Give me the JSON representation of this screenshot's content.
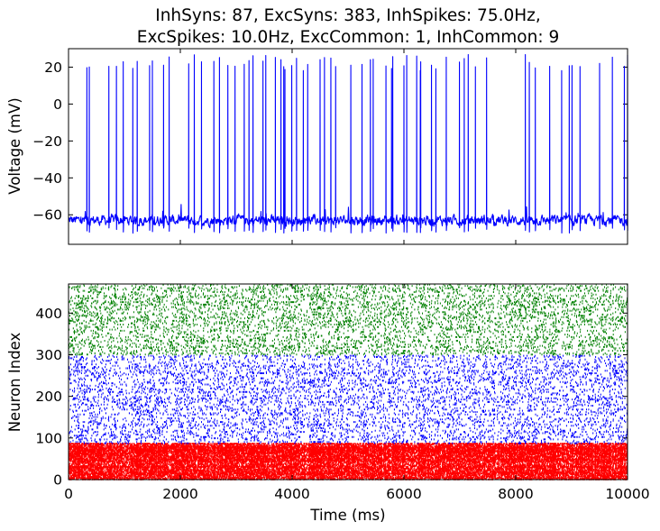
{
  "chart_data": [
    {
      "type": "line",
      "title_lines": [
        "InhSyns: 87, ExcSyns: 383, InhSpikes: 75.0Hz,",
        "ExcSpikes: 10.0Hz, ExcCommon: 1, InhCommon: 9"
      ],
      "xlabel": "",
      "ylabel": "Voltage (mV)",
      "xlim": [
        0,
        10000
      ],
      "ylim": [
        -76,
        30
      ],
      "yticks": [
        20,
        0,
        -20,
        -40,
        -60
      ],
      "ytick_labels": [
        "20",
        "0",
        "−20",
        "−40",
        "−60"
      ],
      "xticks": [
        0,
        2000,
        4000,
        6000,
        8000,
        10000
      ],
      "grid": false,
      "series": [
        {
          "color": "#0000ff",
          "baseline_mv": -63,
          "spike_peak_mv_range": [
            18,
            27
          ],
          "spike_times_ms": [
            330,
            370,
            720,
            860,
            980,
            1150,
            1230,
            1450,
            1500,
            1700,
            1800,
            2150,
            2250,
            2380,
            2600,
            2700,
            2850,
            2980,
            3140,
            3230,
            3300,
            3480,
            3530,
            3700,
            3800,
            3850,
            3870,
            3990,
            4080,
            4200,
            4280,
            4500,
            4580,
            4690,
            4780,
            5050,
            5250,
            5400,
            5450,
            5680,
            5780,
            5800,
            6000,
            6050,
            6230,
            6290,
            6300,
            6490,
            6570,
            6760,
            6990,
            7080,
            7150,
            7280,
            7480,
            8170,
            8240,
            8350,
            8610,
            8820,
            8960,
            9010,
            9150,
            9500,
            9730,
            9940,
            10000
          ]
        }
      ]
    },
    {
      "type": "scatter",
      "subtype": "raster",
      "xlabel": "Time (ms)",
      "ylabel": "Neuron Index",
      "xlim": [
        0,
        10000
      ],
      "ylim": [
        0,
        470
      ],
      "xticks": [
        0,
        2000,
        4000,
        6000,
        8000,
        10000
      ],
      "xtick_labels": [
        "0",
        "2000",
        "4000",
        "6000",
        "8000",
        "10000"
      ],
      "yticks": [
        0,
        100,
        200,
        300,
        400
      ],
      "ytick_labels": [
        "0",
        "100",
        "200",
        "300",
        "400"
      ],
      "grid": false,
      "series": [
        {
          "color": "#ff0000",
          "neuron_index_range": [
            0,
            87
          ],
          "rate_hz": 75.0
        },
        {
          "color": "#0000ff",
          "neuron_index_range": [
            87,
            300
          ],
          "rate_hz": 10.0
        },
        {
          "color": "#008000",
          "neuron_index_range": [
            300,
            470
          ],
          "rate_hz": 10.0
        }
      ]
    }
  ]
}
